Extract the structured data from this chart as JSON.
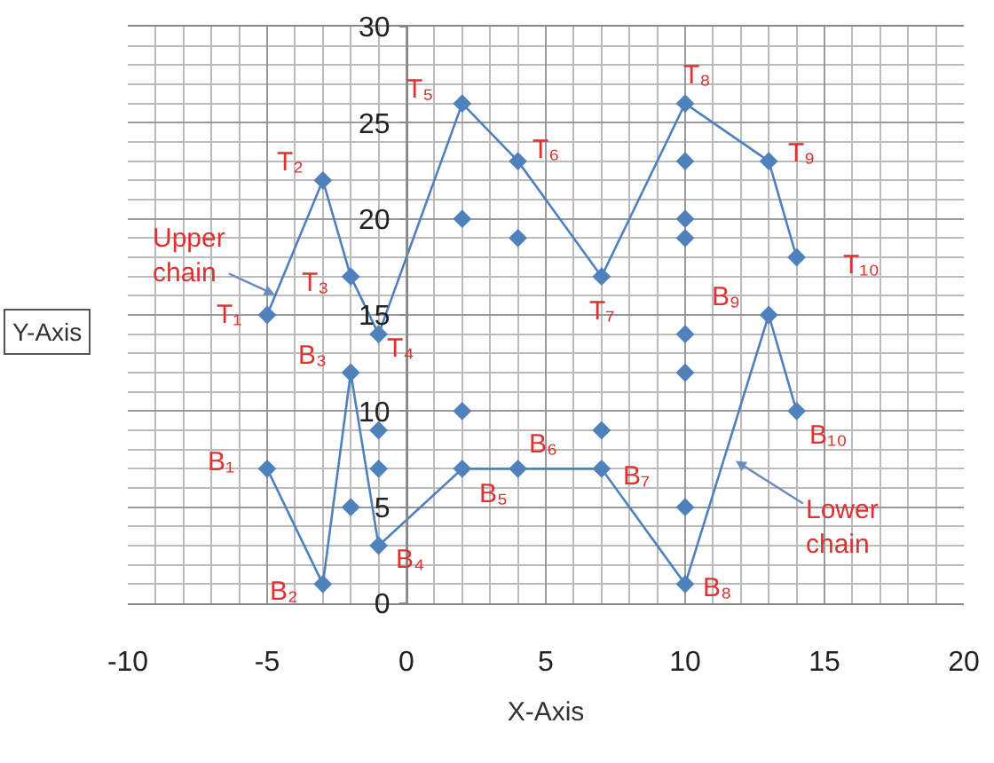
{
  "chart_data": {
    "type": "line",
    "xlabel": "X-Axis",
    "ylabel": "Y-Axis",
    "xlim": [
      -10,
      20
    ],
    "xticks": [
      -10,
      -5,
      0,
      5,
      10,
      15,
      20
    ],
    "ylim": [
      0,
      30
    ],
    "yticks": [
      0,
      5,
      10,
      15,
      20,
      25,
      30
    ],
    "grid": true,
    "marker": "diamond",
    "line_style": "solid",
    "series": [
      {
        "type": "line",
        "color": "#4f81bd",
        "x": [
          -5,
          -3,
          -2,
          -1,
          2,
          4,
          7,
          10,
          13,
          14
        ],
        "values": [
          15,
          22,
          17,
          14,
          26,
          23,
          17,
          26,
          23,
          18
        ]
      },
      {
        "type": "line",
        "color": "#4f81bd",
        "x": [
          -5,
          -3,
          -2,
          -1,
          2,
          4,
          7,
          10,
          13,
          14
        ],
        "values": [
          7,
          1,
          12,
          3,
          7,
          7,
          7,
          1,
          15,
          10
        ]
      },
      {
        "type": "scatter",
        "color": "#4f81bd",
        "x": [
          2,
          4,
          10,
          10,
          10,
          10,
          10,
          10,
          2,
          7,
          -1,
          -1,
          -2
        ],
        "values": [
          20,
          19,
          23,
          20,
          19,
          14,
          12,
          5,
          10,
          9,
          9,
          7,
          5
        ]
      }
    ],
    "annotations": [
      {
        "text": "T₁",
        "x": -5,
        "y": 15
      },
      {
        "text": "T₂",
        "x": -3,
        "y": 22
      },
      {
        "text": "T₃",
        "x": -2,
        "y": 17
      },
      {
        "text": "T₄",
        "x": -1,
        "y": 14
      },
      {
        "text": "T₅",
        "x": 2,
        "y": 26
      },
      {
        "text": "T₆",
        "x": 4,
        "y": 23
      },
      {
        "text": "T₇",
        "x": 7,
        "y": 17
      },
      {
        "text": "T₈",
        "x": 10,
        "y": 26
      },
      {
        "text": "T₉",
        "x": 13,
        "y": 23
      },
      {
        "text": "T₁₀",
        "x": 14,
        "y": 18
      },
      {
        "text": "B₁",
        "x": -5,
        "y": 7
      },
      {
        "text": "B₂",
        "x": -3,
        "y": 1
      },
      {
        "text": "B₃",
        "x": -2,
        "y": 12
      },
      {
        "text": "B₄",
        "x": -1,
        "y": 3
      },
      {
        "text": "B₅",
        "x": 2,
        "y": 7
      },
      {
        "text": "B₆",
        "x": 4,
        "y": 7
      },
      {
        "text": "B₇",
        "x": 7,
        "y": 7
      },
      {
        "text": "B₈",
        "x": 10,
        "y": 1
      },
      {
        "text": "B₉",
        "x": 13,
        "y": 15
      },
      {
        "text": "B₁₀",
        "x": 14,
        "y": 10
      },
      "Upper chain",
      "Lower chain"
    ]
  }
}
